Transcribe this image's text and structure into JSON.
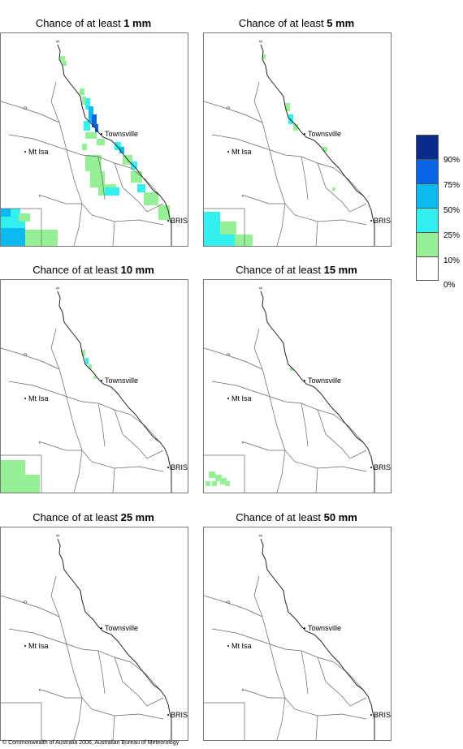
{
  "panels": [
    {
      "prefix": "Chance of at least ",
      "amount": "1 mm",
      "level": 1
    },
    {
      "prefix": "Chance of at least ",
      "amount": "5 mm",
      "level": 2
    },
    {
      "prefix": "Chance of at least ",
      "amount": "10 mm",
      "level": 3
    },
    {
      "prefix": "Chance of at least ",
      "amount": "15 mm",
      "level": 4
    },
    {
      "prefix": "Chance of at least ",
      "amount": "25 mm",
      "level": 5
    },
    {
      "prefix": "Chance of at least ",
      "amount": "50 mm",
      "level": 6
    }
  ],
  "towns": {
    "townsville": "Townsville",
    "mt_isa": "Mt Isa",
    "brisbane": "BRIS"
  },
  "legend": {
    "labels": [
      "90%",
      "75%",
      "50%",
      "25%",
      "10%",
      "0%"
    ],
    "colors": [
      "#0a2a8c",
      "#0a64e6",
      "#0abaf0",
      "#32f0f0",
      "#96f096",
      "#ffffff"
    ]
  },
  "copyright": "© Commonwealth of Australia 2006, Australian Bureau of Meteorology"
}
